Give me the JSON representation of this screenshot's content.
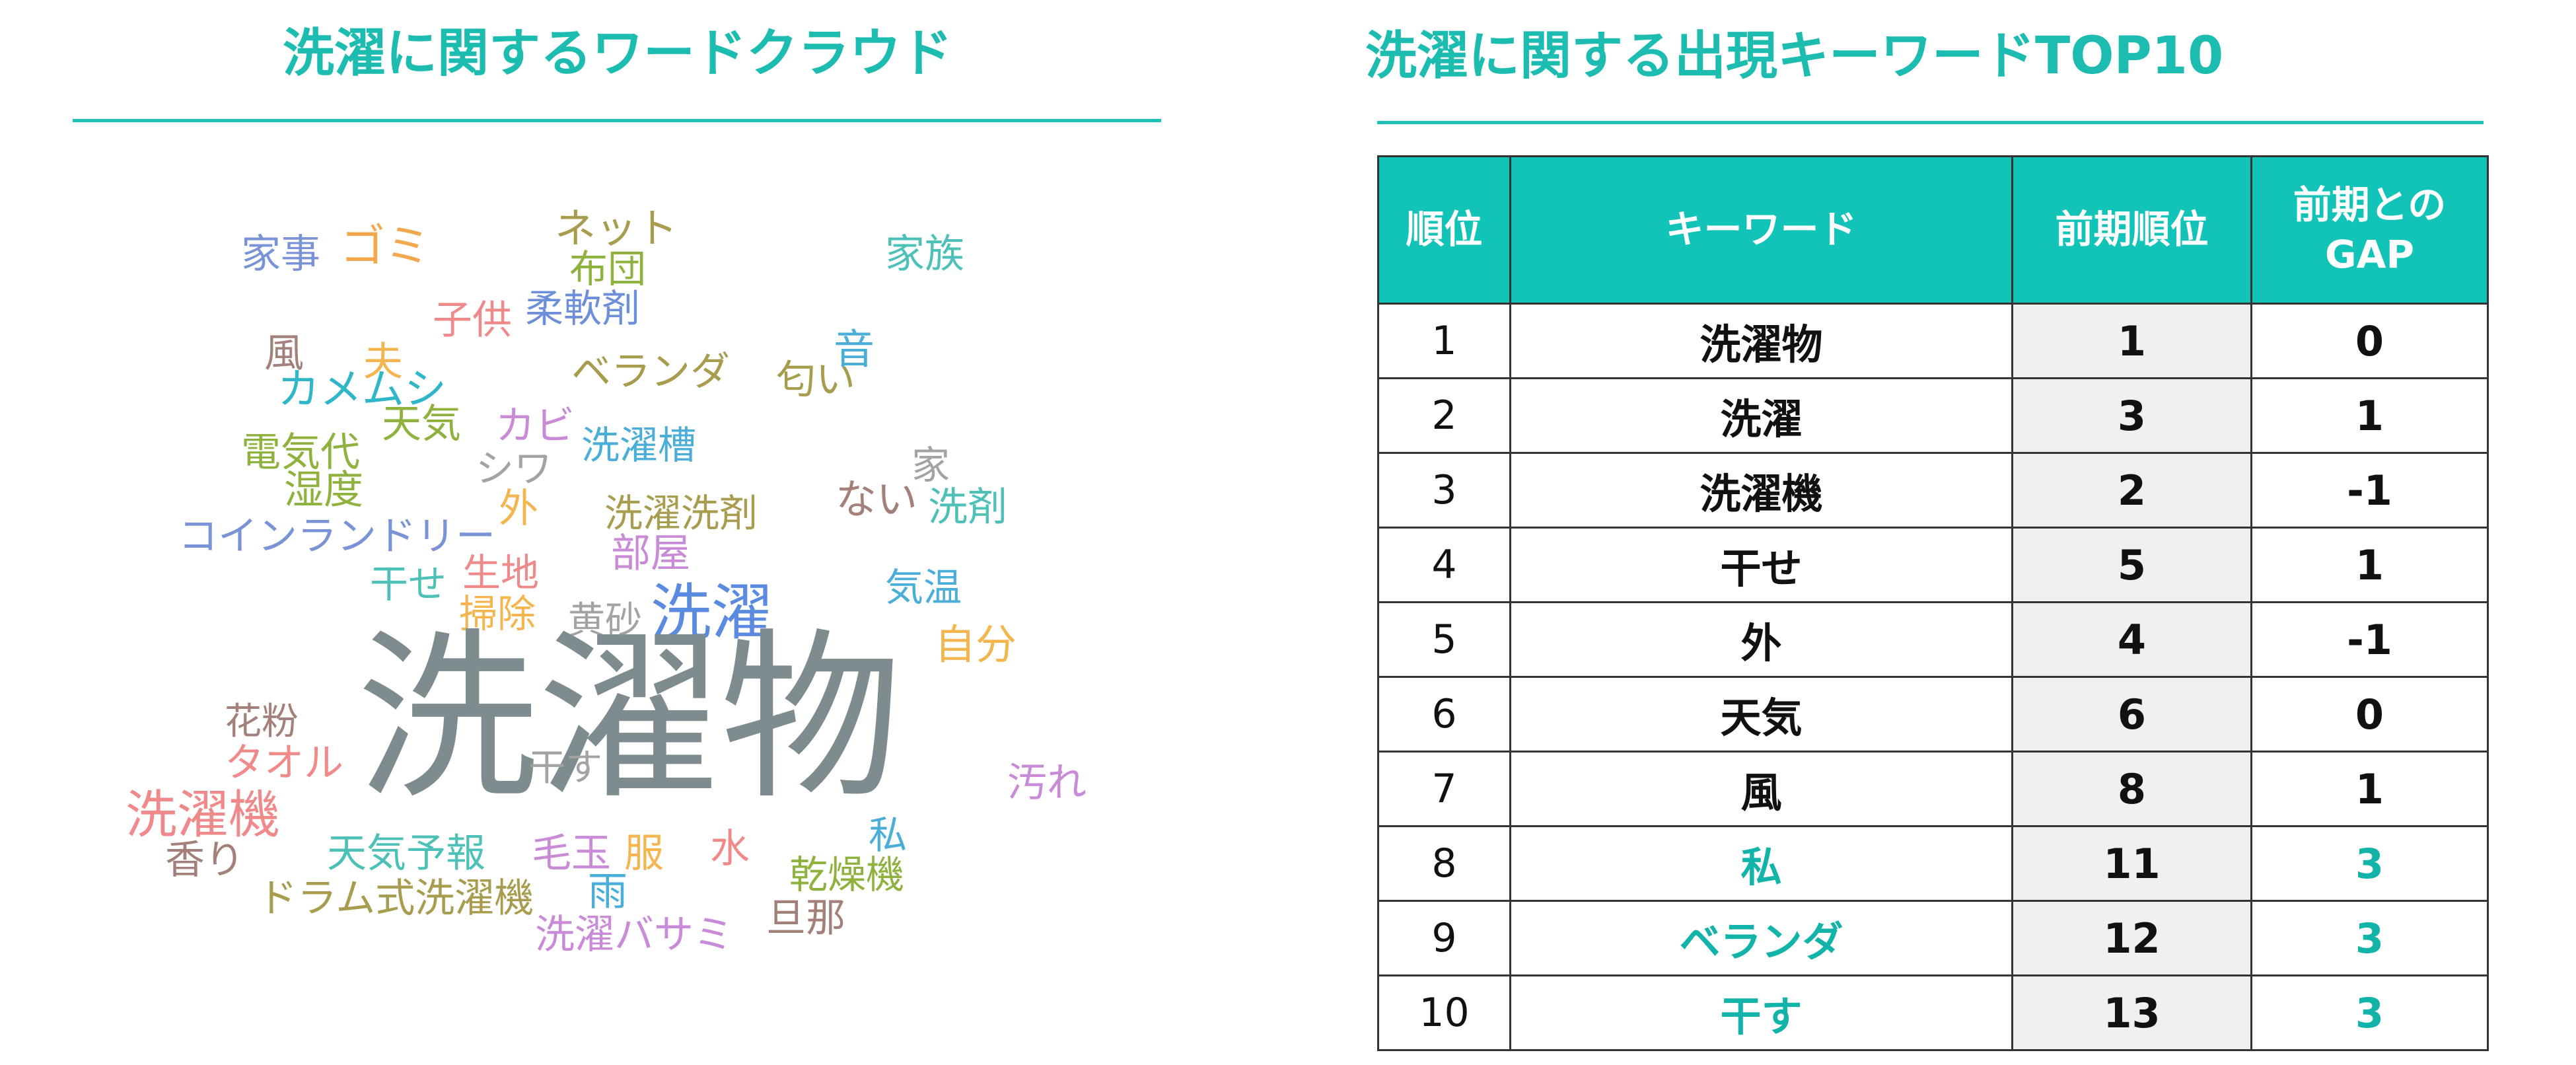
{
  "left_title": "洗濯に関するワードクラウド",
  "right_title": "洗濯に関する出現キーワードTOP10",
  "word_cloud": [
    {
      "text": "家事",
      "color": "#7a93d6"
    },
    {
      "text": "ゴミ",
      "color": "#f4a84e"
    },
    {
      "text": "ネット",
      "color": "#a89c4e"
    },
    {
      "text": "布団",
      "color": "#8fb13e"
    },
    {
      "text": "家族",
      "color": "#4dc1b8"
    },
    {
      "text": "子供",
      "color": "#f08a8a"
    },
    {
      "text": "柔軟剤",
      "color": "#6d8ed8"
    },
    {
      "text": "風",
      "color": "#a3807a"
    },
    {
      "text": "夫",
      "color": "#f4b44e"
    },
    {
      "text": "音",
      "color": "#4aaed8"
    },
    {
      "text": "ベランダ",
      "color": "#a89c4e"
    },
    {
      "text": "匂い",
      "color": "#a89c4e"
    },
    {
      "text": "カメムシ",
      "color": "#2fb7c9"
    },
    {
      "text": "天気",
      "color": "#8fb13e"
    },
    {
      "text": "カビ",
      "color": "#c98ad8"
    },
    {
      "text": "洗濯槽",
      "color": "#4aaed8"
    },
    {
      "text": "電気代",
      "color": "#8fb13e"
    },
    {
      "text": "シワ",
      "color": "#a3a3a3"
    },
    {
      "text": "家",
      "color": "#a3a3a3"
    },
    {
      "text": "湿度",
      "color": "#8fb13e"
    },
    {
      "text": "外",
      "color": "#f4b44e"
    },
    {
      "text": "洗濯洗剤",
      "color": "#a89c4e"
    },
    {
      "text": "ない",
      "color": "#a3807a"
    },
    {
      "text": "洗剤",
      "color": "#4dc1b8"
    },
    {
      "text": "コインランドリー",
      "color": "#7a93d6"
    },
    {
      "text": "部屋",
      "color": "#c98ad8"
    },
    {
      "text": "干せ",
      "color": "#4dc1b8"
    },
    {
      "text": "生地",
      "color": "#f08a8a"
    },
    {
      "text": "気温",
      "color": "#4aaed8"
    },
    {
      "text": "洗濯",
      "color": "#5b8be0"
    },
    {
      "text": "掃除",
      "color": "#f4b44e"
    },
    {
      "text": "黄砂",
      "color": "#a3a3a3"
    },
    {
      "text": "自分",
      "color": "#f4b44e"
    },
    {
      "text": "花粉",
      "color": "#a3807a"
    },
    {
      "text": "洗濯物",
      "color": "#7f8c8f"
    },
    {
      "text": "タオル",
      "color": "#f08a8a"
    },
    {
      "text": "干す",
      "color": "#a3a3a3"
    },
    {
      "text": "汚れ",
      "color": "#c98ad8"
    },
    {
      "text": "洗濯機",
      "color": "#f08a8a"
    },
    {
      "text": "私",
      "color": "#4aaed8"
    },
    {
      "text": "香り",
      "color": "#a3807a"
    },
    {
      "text": "天気予報",
      "color": "#4dc1b8"
    },
    {
      "text": "毛玉",
      "color": "#c98ad8"
    },
    {
      "text": "服",
      "color": "#f4b44e"
    },
    {
      "text": "水",
      "color": "#f08a8a"
    },
    {
      "text": "乾燥機",
      "color": "#8fb13e"
    },
    {
      "text": "雨",
      "color": "#4aaed8"
    },
    {
      "text": "ドラム式洗濯機",
      "color": "#a89c4e"
    },
    {
      "text": "旦那",
      "color": "#a3807a"
    },
    {
      "text": "洗濯バサミ",
      "color": "#c98ad8"
    }
  ],
  "table": {
    "headers": {
      "rank": "順位",
      "keyword": "キーワード",
      "prev_rank": "前期順位",
      "gap_line1": "前期との",
      "gap_line2": "GAP"
    },
    "rows": [
      {
        "rank": "1",
        "keyword": "洗濯物",
        "prev": "1",
        "gap": "0",
        "highlight": false
      },
      {
        "rank": "2",
        "keyword": "洗濯",
        "prev": "3",
        "gap": "1",
        "highlight": false
      },
      {
        "rank": "3",
        "keyword": "洗濯機",
        "prev": "2",
        "gap": "-1",
        "highlight": false
      },
      {
        "rank": "4",
        "keyword": "干せ",
        "prev": "5",
        "gap": "1",
        "highlight": false
      },
      {
        "rank": "5",
        "keyword": "外",
        "prev": "4",
        "gap": "-1",
        "highlight": false
      },
      {
        "rank": "6",
        "keyword": "天気",
        "prev": "6",
        "gap": "0",
        "highlight": false
      },
      {
        "rank": "7",
        "keyword": "風",
        "prev": "8",
        "gap": "1",
        "highlight": false
      },
      {
        "rank": "8",
        "keyword": "私",
        "prev": "11",
        "gap": "3",
        "highlight": true
      },
      {
        "rank": "9",
        "keyword": "ベランダ",
        "prev": "12",
        "gap": "3",
        "highlight": true
      },
      {
        "rank": "10",
        "keyword": "干す",
        "prev": "13",
        "gap": "3",
        "highlight": true
      }
    ],
    "highlight_color": "#12b3a8",
    "header_color": "#12c4b8"
  }
}
